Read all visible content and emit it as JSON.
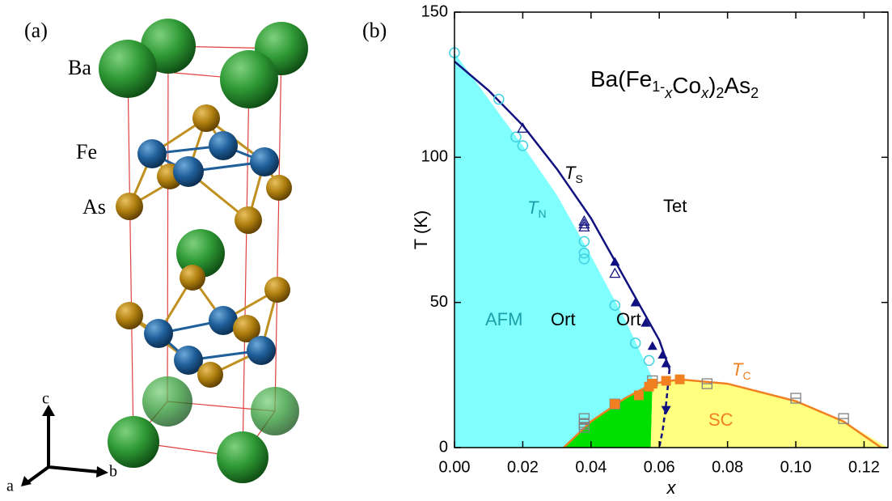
{
  "panel_a": {
    "label": "(a)",
    "atoms": [
      "Ba",
      "Fe",
      "As"
    ],
    "axes": [
      "c",
      "b",
      "a"
    ]
  },
  "chart_data": {
    "type": "phase-diagram",
    "panel_label": "(b)",
    "title": [
      {
        "text": "Ba(Fe"
      },
      {
        "text": "1-",
        "sub": true
      },
      {
        "text": "x",
        "sub": true,
        "italic": true
      },
      {
        "text": "Co"
      },
      {
        "text": "x",
        "sub": true,
        "italic": true
      },
      {
        "text": ")"
      },
      {
        "text": "2",
        "sub": true
      },
      {
        "text": "As"
      },
      {
        "text": "2",
        "sub": true
      }
    ],
    "x_label": "x",
    "y_label": "T (K)",
    "xlim": [
      0,
      0.127
    ],
    "ylim": [
      0,
      150
    ],
    "xticks": [
      {
        "value": 0,
        "label": "0.00"
      },
      {
        "value": 0.02,
        "label": "0.02"
      },
      {
        "value": 0.04,
        "label": "0.04"
      },
      {
        "value": 0.06,
        "label": "0.06"
      },
      {
        "value": 0.08,
        "label": "0.08"
      },
      {
        "value": 0.1,
        "label": "0.10"
      },
      {
        "value": 0.12,
        "label": "0.12"
      }
    ],
    "yticks": [
      0,
      50,
      100,
      150
    ],
    "annotations": [
      {
        "text": "T",
        "sub": "S",
        "color": "#000000"
      },
      {
        "text": "T",
        "sub": "N",
        "color": "#1aa0a8"
      },
      {
        "text": "Tet",
        "color": "#000000"
      },
      {
        "text": "AFM",
        "color": "#1aa0a8"
      },
      {
        "text": "Ort",
        "color": "#000000"
      },
      {
        "text": "Ort",
        "color": "#000000"
      },
      {
        "text": "T",
        "sub": "C",
        "color": "#f08020"
      },
      {
        "text": "SC",
        "color": "#f08020"
      }
    ],
    "regions": [
      {
        "color": "#80ffff",
        "x": [
          0,
          0,
          0.02,
          0.03,
          0.04,
          0.05,
          0.058,
          0.058,
          0.05,
          0.04,
          0.032
        ],
        "values": [
          0,
          136,
          104,
          87,
          66,
          44,
          24,
          22,
          17,
          9,
          0
        ]
      },
      {
        "color": "#00e000",
        "x": [
          0.032,
          0.04,
          0.05,
          0.058,
          0.0575
        ],
        "values": [
          0,
          9,
          17,
          22,
          0
        ]
      },
      {
        "color": "#ffff80",
        "x": [
          0.0575,
          0.058,
          0.06,
          0.066,
          0.08,
          0.1,
          0.114,
          0.127
        ],
        "values": [
          0,
          22,
          22.5,
          23.5,
          22,
          16,
          9,
          0
        ]
      }
    ],
    "lines": [
      {
        "color": "#101080",
        "dash": false,
        "x": [
          0,
          0.01,
          0.02,
          0.03,
          0.04,
          0.05,
          0.06,
          0.063
        ],
        "values": [
          133,
          123,
          111,
          96,
          79,
          58,
          37,
          27
        ]
      },
      {
        "color": "#101080",
        "dash": true,
        "x": [
          0.063,
          0.062,
          0.061,
          0.06
        ],
        "values": [
          27,
          15,
          6,
          0
        ]
      },
      {
        "color": "#f08020",
        "dash": false,
        "x": [
          0.032,
          0.04,
          0.05,
          0.058,
          0.066,
          0.08,
          0.1,
          0.114,
          0.125
        ],
        "values": [
          0,
          9,
          17,
          22,
          23.5,
          22,
          16,
          9,
          0
        ]
      }
    ],
    "series": [
      {
        "marker": "open-circle",
        "color": "#40d0e0",
        "x": [
          0,
          0.013,
          0.018,
          0.02,
          0.038,
          0.038,
          0.038,
          0.047,
          0.053,
          0.057
        ],
        "values": [
          136,
          120,
          107,
          104,
          71,
          67,
          65,
          49,
          36,
          30
        ]
      },
      {
        "marker": "open-triangle",
        "color": "#101080",
        "x": [
          0.02,
          0.038,
          0.038,
          0.038,
          0.047
        ],
        "values": [
          110,
          78,
          77,
          76,
          60
        ]
      },
      {
        "marker": "triangle",
        "color": "#101080",
        "x": [
          0.047,
          0.053,
          0.056,
          0.058,
          0.061,
          0.062
        ],
        "values": [
          64,
          50,
          43,
          35,
          32,
          29
        ]
      },
      {
        "marker": "down-triangle",
        "color": "#101080",
        "x": [
          0.062
        ],
        "values": [
          13
        ]
      },
      {
        "marker": "open-square",
        "color": "#808080",
        "x": [
          0.038,
          0.038,
          0.038,
          0.047,
          0.058,
          0.074,
          0.1,
          0.114
        ],
        "values": [
          10,
          8,
          7,
          15,
          23,
          22,
          17,
          10
        ]
      },
      {
        "marker": "square",
        "color": "#f08020",
        "x": [
          0.047,
          0.054,
          0.057,
          0.058,
          0.062,
          0.066
        ],
        "values": [
          15,
          18,
          21,
          22,
          23,
          23.5
        ]
      }
    ]
  }
}
